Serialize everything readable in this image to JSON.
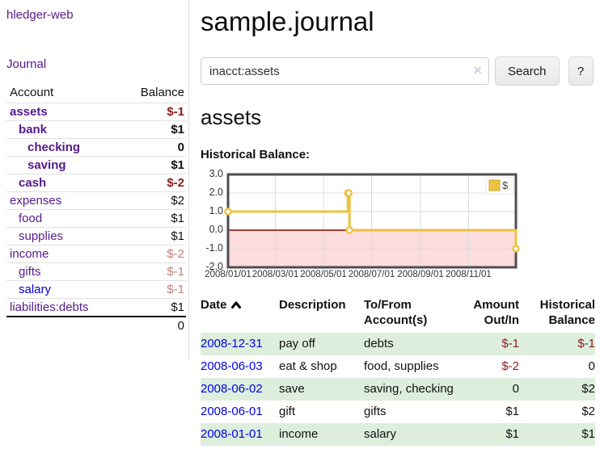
{
  "app": {
    "title": "hledger-web",
    "nav_journal": "Journal"
  },
  "colors": {
    "purple": "#551a8b",
    "blue": "#0000e8",
    "negStrong": "#8b1b1b",
    "negMuted": "#c47f7f",
    "rowGreen": "#ddeedd",
    "chartLine": "#edc240",
    "chartZero": "#8b0000",
    "chartNegBg": "#fcdcdc",
    "chartBorder": "#4e4e4e",
    "chartGrid": "#dcdcdc"
  },
  "sidebar": {
    "headers": {
      "account": "Account",
      "balance": "Balance"
    },
    "rows": [
      {
        "account": "assets",
        "balance": "$-1",
        "level": 0,
        "match": true,
        "amount_style": "neg"
      },
      {
        "account": "bank",
        "balance": "$1",
        "level": 1,
        "match": true,
        "amount_style": "pos"
      },
      {
        "account": "checking",
        "balance": "0",
        "level": 2,
        "match": true,
        "amount_style": "pos"
      },
      {
        "account": "saving",
        "balance": "$1",
        "level": 2,
        "match": true,
        "amount_style": "pos"
      },
      {
        "account": "cash",
        "balance": "$-2",
        "level": 1,
        "match": true,
        "amount_style": "neg"
      },
      {
        "account": "expenses",
        "balance": "$2",
        "level": 0,
        "match": false,
        "amount_style": "pos"
      },
      {
        "account": "food",
        "balance": "$1",
        "level": 1,
        "match": false,
        "amount_style": "pos"
      },
      {
        "account": "supplies",
        "balance": "$1",
        "level": 1,
        "match": false,
        "amount_style": "pos"
      },
      {
        "account": "income",
        "balance": "$-2",
        "level": 0,
        "match": false,
        "amount_style": "negmuted"
      },
      {
        "account": "gifts",
        "balance": "$-1",
        "level": 1,
        "match": false,
        "amount_style": "negmuted"
      },
      {
        "account": "salary",
        "balance": "$-1",
        "level": 1,
        "match": false,
        "amount_style": "negmuted",
        "link": "blue"
      },
      {
        "account": "liabilities:debts",
        "balance": "$1",
        "level": 0,
        "match": false,
        "amount_style": "pos"
      }
    ],
    "total": "0"
  },
  "main": {
    "title": "sample.journal",
    "search": {
      "value": "inacct:assets",
      "clear_icon": "×",
      "button_label": "Search",
      "help_label": "?"
    },
    "account_heading": "assets",
    "chart_label": "Historical Balance:"
  },
  "chart_data": {
    "type": "line",
    "title": "Historical Balance:",
    "series": [
      {
        "name": "$",
        "style": "step",
        "points": [
          [
            "2008-01-01",
            1
          ],
          [
            "2008-06-01",
            2
          ],
          [
            "2008-06-02",
            2
          ],
          [
            "2008-06-03",
            0
          ],
          [
            "2008-12-31",
            -1
          ]
        ]
      }
    ],
    "xdomain": [
      "2008-01-01",
      "2008-12-31"
    ],
    "xticks": [
      "2008/01/01",
      "2008/03/01",
      "2008/05/01",
      "2008/07/01",
      "2008/09/01",
      "2008/11/01"
    ],
    "yticks": [
      "3.0",
      "2.0",
      "1.0",
      "0.0",
      "-1.0",
      "-2.0"
    ],
    "ylim": [
      -2,
      3
    ],
    "legend": {
      "label": "$",
      "position": "top-right"
    },
    "negative_region_shaded": true,
    "grid": true
  },
  "register": {
    "headers": {
      "date": "Date",
      "description": "Description",
      "accounts": "To/From Account(s)",
      "amount": "Amount Out/In",
      "balance": "Historical Balance"
    },
    "rows": [
      {
        "date": "2008-12-31",
        "description": "pay off",
        "accounts": "debts",
        "amount": "$-1",
        "amount_neg": true,
        "balance": "$-1",
        "balance_neg": true
      },
      {
        "date": "2008-06-03",
        "description": "eat & shop",
        "accounts": "food, supplies",
        "amount": "$-2",
        "amount_neg": true,
        "balance": "0",
        "balance_neg": false
      },
      {
        "date": "2008-06-02",
        "description": "save",
        "accounts": "saving, checking",
        "amount": "0",
        "amount_neg": false,
        "balance": "$2",
        "balance_neg": false
      },
      {
        "date": "2008-06-01",
        "description": "gift",
        "accounts": "gifts",
        "amount": "$1",
        "amount_neg": false,
        "balance": "$2",
        "balance_neg": false
      },
      {
        "date": "2008-01-01",
        "description": "income",
        "accounts": "salary",
        "amount": "$1",
        "amount_neg": false,
        "balance": "$1",
        "balance_neg": false
      }
    ]
  }
}
